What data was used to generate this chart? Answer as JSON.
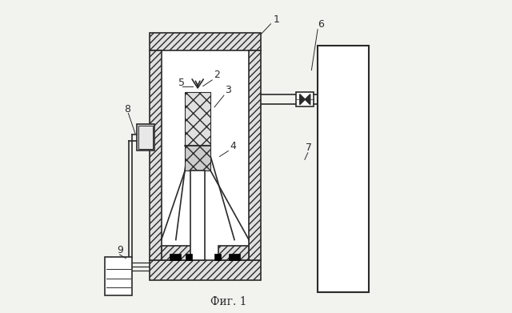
{
  "bg_color": "#f2f2ee",
  "line_color": "#2a2a2a",
  "fig_caption": "Фиг. 1"
}
